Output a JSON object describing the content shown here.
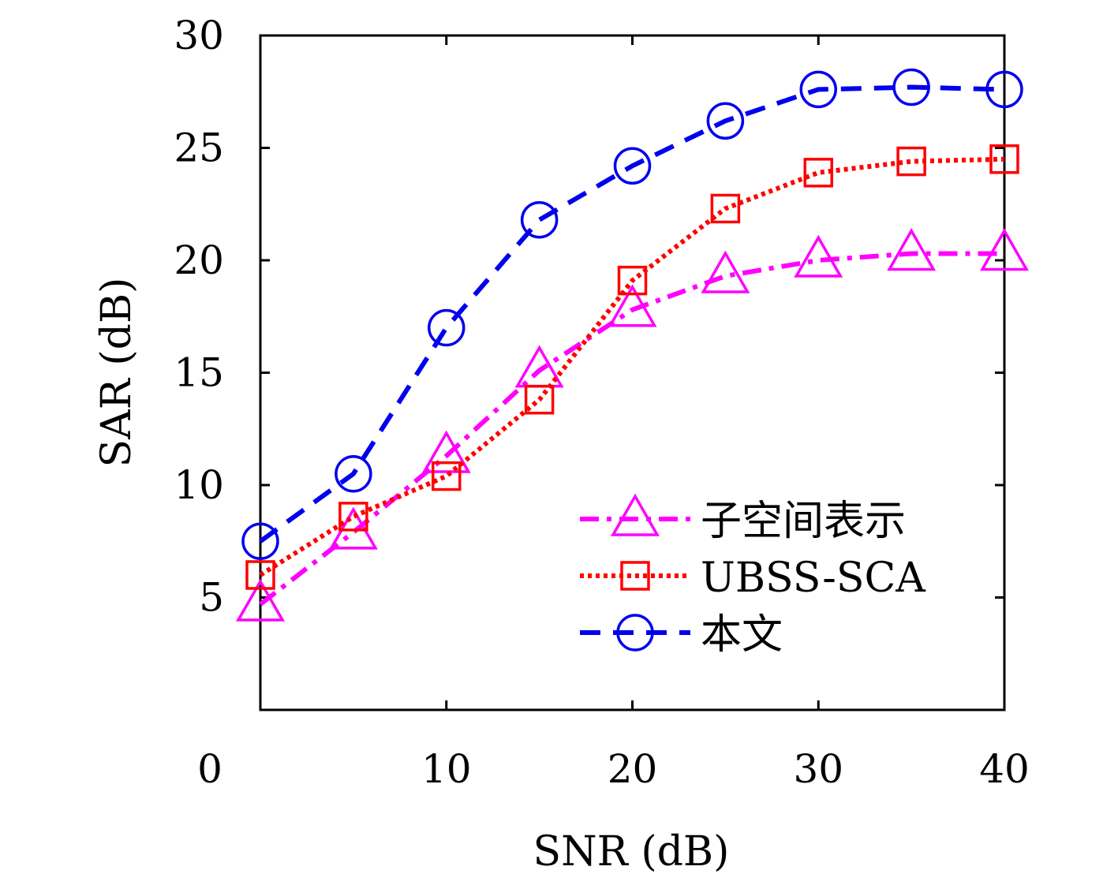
{
  "chart_data": {
    "type": "line",
    "xlabel": "SNR (dB)",
    "ylabel": "SAR (dB)",
    "xlim": [
      0,
      40
    ],
    "ylim": [
      0,
      30
    ],
    "x_axis_start": 0,
    "xticks": [
      0,
      10,
      20,
      30,
      40
    ],
    "yticks": [
      5,
      10,
      15,
      20,
      25,
      30
    ],
    "grid": false,
    "legend_position": "lower-right",
    "x": [
      0,
      5,
      10,
      15,
      20,
      25,
      30,
      35,
      40
    ],
    "series": [
      {
        "name": "子空间表示",
        "color": "#ff00ff",
        "marker": "triangle",
        "line_style": "dash-dot",
        "values": [
          4.7,
          7.9,
          11.3,
          15.1,
          17.8,
          19.3,
          20.0,
          20.3,
          20.3
        ]
      },
      {
        "name": "UBSS-SCA",
        "color": "#ff0000",
        "marker": "square",
        "line_style": "dotted",
        "values": [
          6.0,
          8.6,
          10.4,
          13.8,
          19.1,
          22.3,
          23.9,
          24.4,
          24.5
        ]
      },
      {
        "name": "本文",
        "color": "#0000ee",
        "marker": "circle",
        "line_style": "dashed",
        "values": [
          7.5,
          10.5,
          17.0,
          21.8,
          24.2,
          26.2,
          27.6,
          27.7,
          27.6
        ]
      }
    ]
  }
}
